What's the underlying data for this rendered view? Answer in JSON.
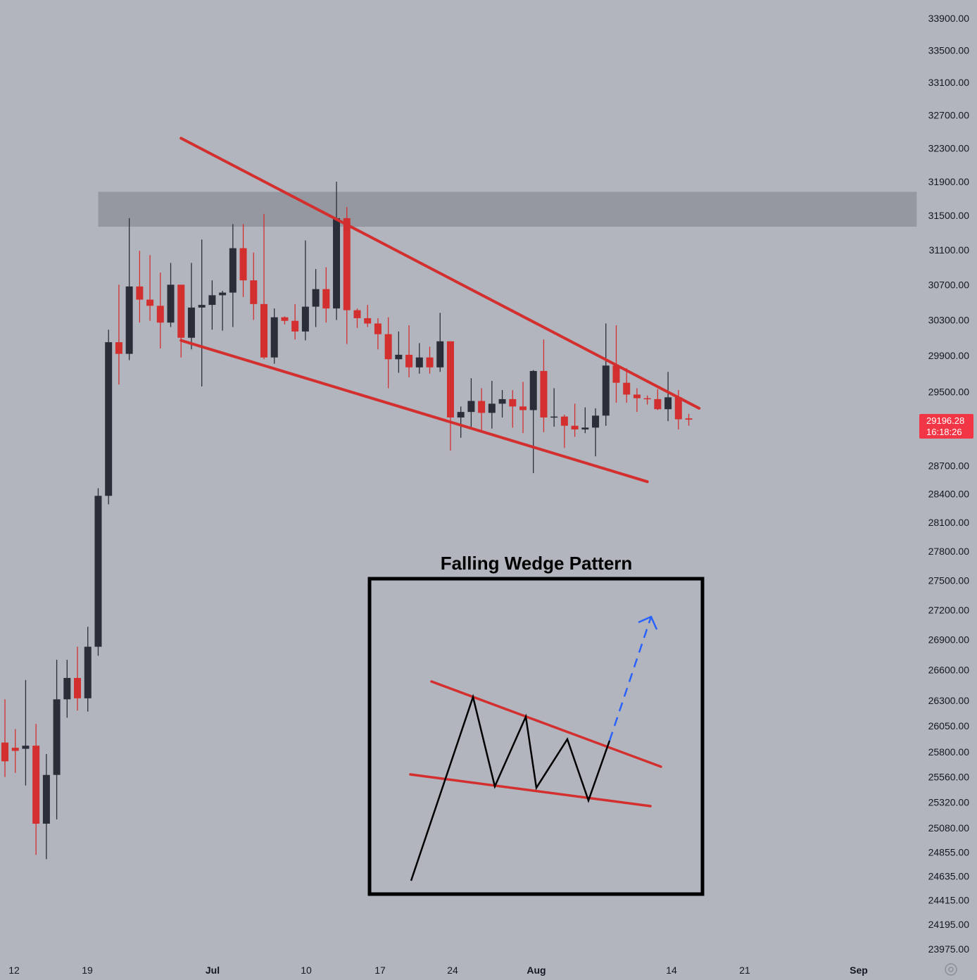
{
  "chart_data": {
    "type": "candlestick",
    "title": "Falling Wedge Pattern",
    "price_axis": {
      "ticks": [
        "33900.00",
        "33500.00",
        "33100.00",
        "32700.00",
        "32300.00",
        "31900.00",
        "31500.00",
        "31100.00",
        "30700.00",
        "30300.00",
        "29900.00",
        "29500.00",
        "28700.00",
        "28400.00",
        "28100.00",
        "27800.00",
        "27500.00",
        "27200.00",
        "26900.00",
        "26600.00",
        "26300.00",
        "26050.00",
        "25800.00",
        "25560.00",
        "25320.00",
        "25080.00",
        "24855.00",
        "24635.00",
        "24415.00",
        "24195.00",
        "23975.00"
      ],
      "scale": "log"
    },
    "time_axis": {
      "ticks": [
        {
          "label": "12",
          "bold": false
        },
        {
          "label": "19",
          "bold": false
        },
        {
          "label": "Jul",
          "bold": true
        },
        {
          "label": "10",
          "bold": false
        },
        {
          "label": "17",
          "bold": false
        },
        {
          "label": "24",
          "bold": false
        },
        {
          "label": "Aug",
          "bold": true
        },
        {
          "label": "14",
          "bold": false
        },
        {
          "label": "21",
          "bold": false
        },
        {
          "label": "Sep",
          "bold": true
        }
      ]
    },
    "last_price": {
      "value": "29196.28",
      "countdown": "16:18:26"
    },
    "candles": [
      {
        "o": 25890,
        "h": 26310,
        "l": 25560,
        "c": 25710
      },
      {
        "o": 25840,
        "h": 26020,
        "l": 25600,
        "c": 25810
      },
      {
        "o": 25830,
        "h": 26500,
        "l": 25480,
        "c": 25860
      },
      {
        "o": 25860,
        "h": 26070,
        "l": 24830,
        "c": 25120
      },
      {
        "o": 25120,
        "h": 25780,
        "l": 24790,
        "c": 25580
      },
      {
        "o": 25580,
        "h": 26700,
        "l": 25160,
        "c": 26310
      },
      {
        "o": 26310,
        "h": 26700,
        "l": 26130,
        "c": 26520
      },
      {
        "o": 26520,
        "h": 26830,
        "l": 26200,
        "c": 26320
      },
      {
        "o": 26320,
        "h": 27030,
        "l": 26190,
        "c": 26830
      },
      {
        "o": 26830,
        "h": 28460,
        "l": 26740,
        "c": 28380
      },
      {
        "o": 28380,
        "h": 30190,
        "l": 28290,
        "c": 30050
      },
      {
        "o": 30050,
        "h": 30700,
        "l": 29580,
        "c": 29920
      },
      {
        "o": 29920,
        "h": 31470,
        "l": 29850,
        "c": 30680
      },
      {
        "o": 30680,
        "h": 31090,
        "l": 30270,
        "c": 30530
      },
      {
        "o": 30530,
        "h": 31040,
        "l": 30290,
        "c": 30460
      },
      {
        "o": 30460,
        "h": 30840,
        "l": 29980,
        "c": 30270
      },
      {
        "o": 30270,
        "h": 30950,
        "l": 30220,
        "c": 30700
      },
      {
        "o": 30700,
        "h": 30700,
        "l": 29880,
        "c": 30100
      },
      {
        "o": 30100,
        "h": 30950,
        "l": 29970,
        "c": 30440
      },
      {
        "o": 30440,
        "h": 31220,
        "l": 29560,
        "c": 30470
      },
      {
        "o": 30470,
        "h": 30750,
        "l": 30190,
        "c": 30580
      },
      {
        "o": 30580,
        "h": 30630,
        "l": 30180,
        "c": 30610
      },
      {
        "o": 30610,
        "h": 31400,
        "l": 30220,
        "c": 31120
      },
      {
        "o": 31120,
        "h": 31400,
        "l": 30560,
        "c": 30750
      },
      {
        "o": 30750,
        "h": 31070,
        "l": 30300,
        "c": 30480
      },
      {
        "o": 30480,
        "h": 31520,
        "l": 29860,
        "c": 29880
      },
      {
        "o": 29880,
        "h": 30430,
        "l": 29810,
        "c": 30330
      },
      {
        "o": 30330,
        "h": 30340,
        "l": 30250,
        "c": 30290
      },
      {
        "o": 30290,
        "h": 30480,
        "l": 30080,
        "c": 30170
      },
      {
        "o": 30170,
        "h": 31210,
        "l": 30070,
        "c": 30450
      },
      {
        "o": 30450,
        "h": 30880,
        "l": 30220,
        "c": 30650
      },
      {
        "o": 30650,
        "h": 30900,
        "l": 30270,
        "c": 30430
      },
      {
        "o": 30430,
        "h": 31900,
        "l": 30300,
        "c": 31470
      },
      {
        "o": 31470,
        "h": 31600,
        "l": 30030,
        "c": 30410
      },
      {
        "o": 30410,
        "h": 30430,
        "l": 30210,
        "c": 30320
      },
      {
        "o": 30320,
        "h": 30470,
        "l": 30220,
        "c": 30260
      },
      {
        "o": 30260,
        "h": 30320,
        "l": 29970,
        "c": 30140
      },
      {
        "o": 30140,
        "h": 30330,
        "l": 29540,
        "c": 29860
      },
      {
        "o": 29860,
        "h": 30170,
        "l": 29710,
        "c": 29910
      },
      {
        "o": 29910,
        "h": 30240,
        "l": 29660,
        "c": 29770
      },
      {
        "o": 29770,
        "h": 30040,
        "l": 29700,
        "c": 29880
      },
      {
        "o": 29880,
        "h": 30000,
        "l": 29700,
        "c": 29770
      },
      {
        "o": 29770,
        "h": 30380,
        "l": 29720,
        "c": 30060
      },
      {
        "o": 30060,
        "h": 30060,
        "l": 28860,
        "c": 29220
      },
      {
        "o": 29220,
        "h": 29340,
        "l": 29000,
        "c": 29280
      },
      {
        "o": 29280,
        "h": 29650,
        "l": 29100,
        "c": 29400
      },
      {
        "o": 29400,
        "h": 29540,
        "l": 29080,
        "c": 29270
      },
      {
        "o": 29270,
        "h": 29620,
        "l": 29100,
        "c": 29370
      },
      {
        "o": 29370,
        "h": 29520,
        "l": 29220,
        "c": 29420
      },
      {
        "o": 29420,
        "h": 29520,
        "l": 29110,
        "c": 29340
      },
      {
        "o": 29340,
        "h": 29610,
        "l": 29050,
        "c": 29300
      },
      {
        "o": 29300,
        "h": 29740,
        "l": 28620,
        "c": 29730
      },
      {
        "o": 29730,
        "h": 30080,
        "l": 29060,
        "c": 29220
      },
      {
        "o": 29220,
        "h": 29540,
        "l": 29120,
        "c": 29230
      },
      {
        "o": 29230,
        "h": 29250,
        "l": 28890,
        "c": 29130
      },
      {
        "o": 29130,
        "h": 29370,
        "l": 29010,
        "c": 29090
      },
      {
        "o": 29090,
        "h": 29330,
        "l": 29050,
        "c": 29110
      },
      {
        "o": 29110,
        "h": 29320,
        "l": 28800,
        "c": 29240
      },
      {
        "o": 29240,
        "h": 30260,
        "l": 29130,
        "c": 29790
      },
      {
        "o": 29790,
        "h": 30240,
        "l": 29380,
        "c": 29600
      },
      {
        "o": 29600,
        "h": 29760,
        "l": 29380,
        "c": 29470
      },
      {
        "o": 29470,
        "h": 29540,
        "l": 29280,
        "c": 29430
      },
      {
        "o": 29430,
        "h": 29460,
        "l": 29360,
        "c": 29420
      },
      {
        "o": 29420,
        "h": 29530,
        "l": 29300,
        "c": 29310
      },
      {
        "o": 29310,
        "h": 29720,
        "l": 29180,
        "c": 29440
      },
      {
        "o": 29440,
        "h": 29520,
        "l": 29090,
        "c": 29200
      },
      {
        "o": 29210,
        "h": 29260,
        "l": 29130,
        "c": 29196
      }
    ],
    "trendlines": [
      {
        "name": "upper",
        "from": {
          "i": 17,
          "p": 32420
        },
        "to": {
          "i": 67,
          "p": 29320
        }
      },
      {
        "name": "lower",
        "from": {
          "i": 17,
          "p": 30070
        },
        "to": {
          "i": 62,
          "p": 28530
        }
      }
    ],
    "resistance_zone": {
      "from_i": 9,
      "to_i": 88,
      "top": 31780,
      "bottom": 31370
    },
    "colors": {
      "background": "#b2b5be",
      "up": "#2a2e39",
      "down": "#d32f2f",
      "trendline": "#d32f2f",
      "zone": "#9598a1",
      "last_price_tag": "#f23645",
      "diagram_line": "#000000",
      "projection": "#2962ff"
    }
  }
}
